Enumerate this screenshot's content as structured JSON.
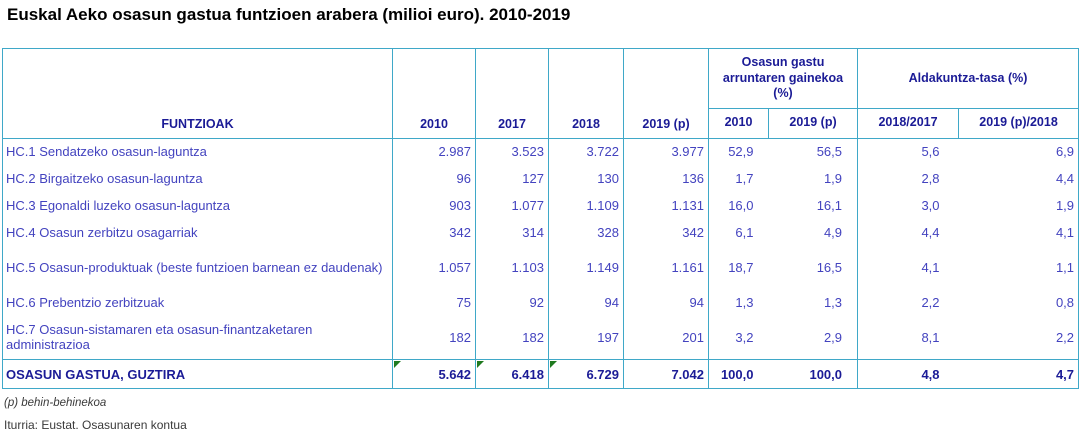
{
  "title": "Euskal Aeko osasun gastua funtzioen arabera (milioi euro). 2010-2019",
  "table": {
    "header": {
      "functions_label": "FUNTZIOAK",
      "year_columns": [
        "2010",
        "2017",
        "2018",
        "2019 (p)"
      ],
      "group_current_share": {
        "label": "Osasun gastu arruntaren gainekoa (%)",
        "sub_columns": [
          "2010",
          "2019 (p)"
        ]
      },
      "group_change_rate": {
        "label": "Aldakuntza-tasa (%)",
        "sub_columns": [
          "2018/2017",
          "2019 (p)/2018"
        ]
      }
    },
    "rows": [
      {
        "label": "HC.1 Sendatzeko osasun-laguntza",
        "tall": false,
        "values": [
          "2.987",
          "3.523",
          "3.722",
          "3.977",
          "52,9",
          "56,5",
          "5,6",
          "6,9"
        ]
      },
      {
        "label": "HC.2 Birgaitzeko osasun-laguntza",
        "tall": false,
        "values": [
          "96",
          "127",
          "130",
          "136",
          "1,7",
          "1,9",
          "2,8",
          "4,4"
        ]
      },
      {
        "label": "HC.3 Egonaldi luzeko osasun-laguntza",
        "tall": false,
        "values": [
          "903",
          "1.077",
          "1.109",
          "1.131",
          "16,0",
          "16,1",
          "3,0",
          "1,9"
        ]
      },
      {
        "label": "HC.4 Osasun zerbitzu osagarriak",
        "tall": false,
        "values": [
          "342",
          "314",
          "328",
          "342",
          "6,1",
          "4,9",
          "4,4",
          "4,1"
        ]
      },
      {
        "label": "HC.5 Osasun-produktuak (beste funtzioen barnean ez daudenak)",
        "tall": true,
        "values": [
          "1.057",
          "1.103",
          "1.149",
          "1.161",
          "18,7",
          "16,5",
          "4,1",
          "1,1"
        ]
      },
      {
        "label": "HC.6 Prebentzio zerbitzuak",
        "tall": false,
        "values": [
          "75",
          "92",
          "94",
          "94",
          "1,3",
          "1,3",
          "2,2",
          "0,8"
        ]
      },
      {
        "label": "HC.7 Osasun-sistamaren eta osasun-finantzaketaren administrazioa",
        "tall": true,
        "values": [
          "182",
          "182",
          "197",
          "201",
          "3,2",
          "2,9",
          "8,1",
          "2,2"
        ]
      }
    ],
    "total": {
      "label": "OSASUN GASTUA, GUZTIRA",
      "values": [
        "5.642",
        "6.418",
        "6.729",
        "7.042",
        "100,0",
        "100,0",
        "4,8",
        "4,7"
      ],
      "flagged_value_indices": [
        0,
        1,
        2
      ]
    }
  },
  "footnotes": {
    "provisional": "(p) behin-behinekoa",
    "source": "Iturria: Eustat. Osasunaren kontua"
  },
  "colors": {
    "border": "#3FA8C8",
    "header_text": "#1B1B96",
    "data_text": "#4343BF",
    "total_text": "#1B1B96",
    "flag_green": "#1F7A1F",
    "title_text": "#000000",
    "footnote_text": "#3A3A3A"
  }
}
